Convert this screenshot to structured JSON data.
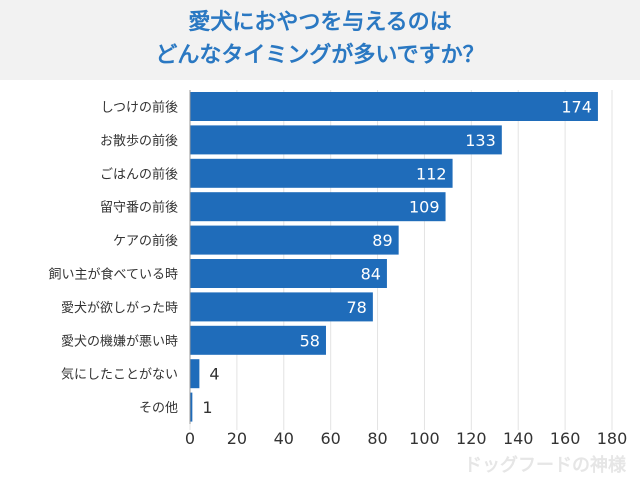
{
  "chart_data": {
    "type": "bar",
    "orientation": "horizontal",
    "title_line1": "愛犬におやつを与えるのは",
    "title_line2": "どんなタイミングが多いですか？",
    "categories": [
      "しつけの前後",
      "お散歩の前後",
      "ごはんの前後",
      "留守番の前後",
      "ケアの前後",
      "飼い主が食べている時",
      "愛犬が欲しがった時",
      "愛犬の機嫌が悪い時",
      "気にしたことがない",
      "その他"
    ],
    "values": [
      174,
      133,
      112,
      109,
      89,
      84,
      78,
      58,
      4,
      1
    ],
    "xlim": [
      0,
      180
    ],
    "xticks": [
      0,
      20,
      40,
      60,
      80,
      100,
      120,
      140,
      160,
      180
    ],
    "grid": "vertical",
    "bar_color": "#1f6cba"
  },
  "watermark": "ドッグフードの神様"
}
